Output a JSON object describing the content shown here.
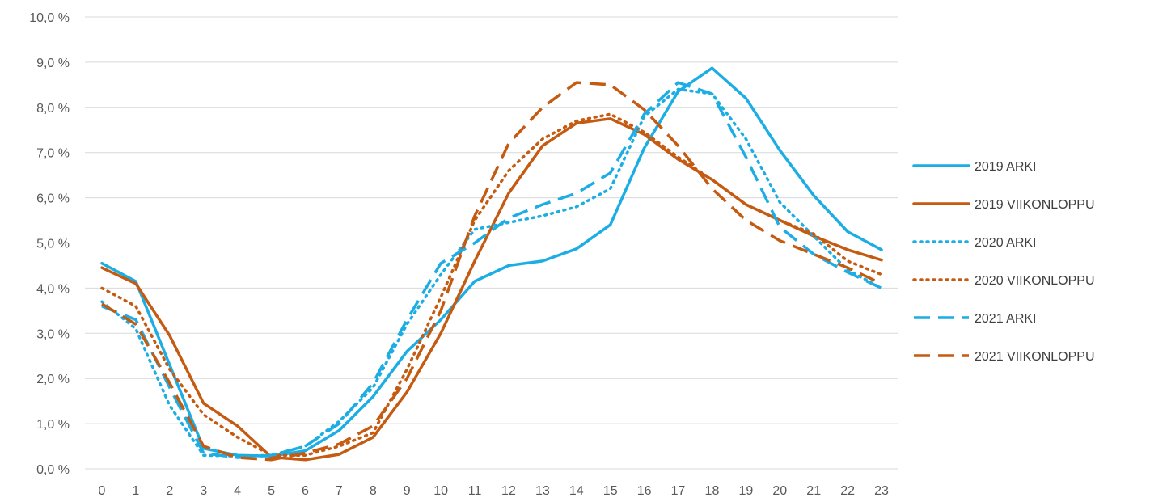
{
  "chart_data": {
    "type": "line",
    "title": "",
    "xlabel": "",
    "ylabel": "",
    "x": [
      0,
      1,
      2,
      3,
      4,
      5,
      6,
      7,
      8,
      9,
      10,
      11,
      12,
      13,
      14,
      15,
      16,
      17,
      18,
      19,
      20,
      21,
      22,
      23
    ],
    "x_tick_labels": [
      "0",
      "1",
      "2",
      "3",
      "4",
      "5",
      "6",
      "7",
      "8",
      "9",
      "10",
      "11",
      "12",
      "13",
      "14",
      "15",
      "16",
      "17",
      "18",
      "19",
      "20",
      "21",
      "22",
      "23"
    ],
    "ylim": [
      0,
      10
    ],
    "y_ticks": [
      0,
      1,
      2,
      3,
      4,
      5,
      6,
      7,
      8,
      9,
      10
    ],
    "y_tick_labels": [
      "0,0 %",
      "1,0 %",
      "2,0 %",
      "3,0 %",
      "4,0 %",
      "5,0 %",
      "6,0 %",
      "7,0 %",
      "8,0 %",
      "9,0 %",
      "10,0 %"
    ],
    "grid": true,
    "legend_position": "right",
    "series": [
      {
        "name": "2019 ARKI",
        "color": "#1BADE4",
        "dash": "solid",
        "values": [
          4.55,
          4.15,
          2.3,
          0.45,
          0.3,
          0.28,
          0.4,
          0.85,
          1.6,
          2.6,
          3.3,
          4.15,
          4.5,
          4.6,
          4.87,
          5.4,
          7.1,
          8.35,
          8.87,
          8.2,
          7.05,
          6.05,
          5.25,
          4.85
        ]
      },
      {
        "name": "2019 VIIKONLOPPU",
        "color": "#C55A11",
        "dash": "solid",
        "values": [
          4.45,
          4.1,
          2.95,
          1.45,
          0.95,
          0.26,
          0.2,
          0.32,
          0.7,
          1.7,
          3.0,
          4.6,
          6.1,
          7.15,
          7.65,
          7.75,
          7.4,
          6.85,
          6.4,
          5.85,
          5.5,
          5.15,
          4.85,
          4.62
        ]
      },
      {
        "name": "2020 ARKI",
        "color": "#1BADE4",
        "dash": "dot",
        "values": [
          3.7,
          3.1,
          1.4,
          0.3,
          0.28,
          0.3,
          0.5,
          1.05,
          1.8,
          3.2,
          4.3,
          5.3,
          5.45,
          5.6,
          5.8,
          6.2,
          7.8,
          8.4,
          8.3,
          7.3,
          5.9,
          5.15,
          4.4,
          4.0
        ]
      },
      {
        "name": "2020 VIIKONLOPPU",
        "color": "#C55A11",
        "dash": "dot",
        "values": [
          4.0,
          3.6,
          2.2,
          1.2,
          0.7,
          0.3,
          0.3,
          0.5,
          0.8,
          2.2,
          3.8,
          5.5,
          6.6,
          7.3,
          7.7,
          7.85,
          7.45,
          6.9,
          6.4,
          5.85,
          5.5,
          5.2,
          4.6,
          4.3
        ]
      },
      {
        "name": "2021 ARKI",
        "color": "#1BADE4",
        "dash": "dash",
        "values": [
          3.6,
          3.3,
          1.8,
          0.35,
          0.25,
          0.3,
          0.5,
          1.0,
          1.9,
          3.3,
          4.55,
          5.0,
          5.55,
          5.85,
          6.1,
          6.55,
          7.85,
          8.55,
          8.3,
          6.9,
          5.35,
          4.75,
          4.35,
          4.0
        ]
      },
      {
        "name": "2021 VIIKONLOPPU",
        "color": "#C55A11",
        "dash": "dash",
        "values": [
          3.65,
          3.2,
          1.9,
          0.5,
          0.25,
          0.2,
          0.35,
          0.55,
          0.95,
          2.0,
          3.5,
          5.6,
          7.2,
          8.0,
          8.55,
          8.5,
          7.95,
          7.15,
          6.2,
          5.5,
          5.05,
          4.75,
          4.45,
          4.1
        ]
      }
    ]
  }
}
